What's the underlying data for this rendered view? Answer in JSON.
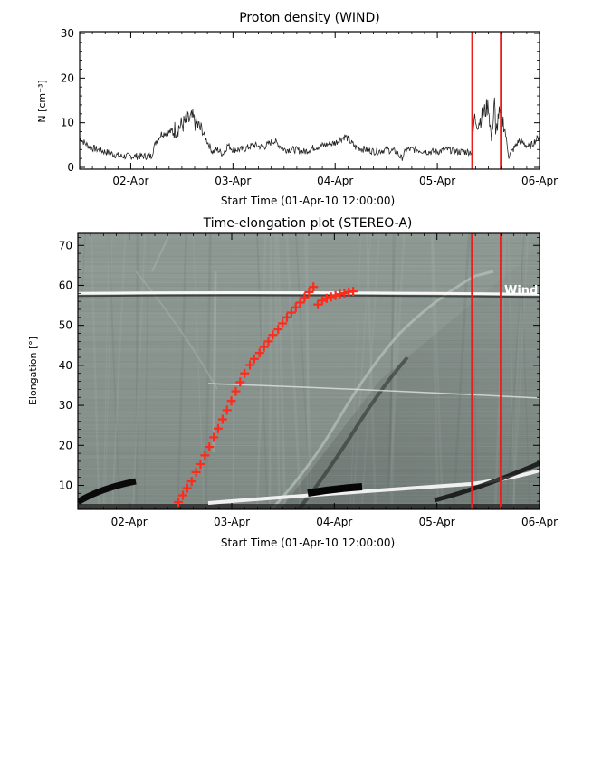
{
  "chart_data": [
    {
      "type": "line",
      "title": "Proton density (WIND)",
      "xlabel": "Start Time (01-Apr-10 12:00:00)",
      "ylabel": "N [cm⁻³]",
      "xlim_days": [
        0.0,
        4.5
      ],
      "ylim": [
        0,
        30
      ],
      "yticks": [
        "0",
        "10",
        "20",
        "30"
      ],
      "xticks": [
        "02-Apr",
        "03-Apr",
        "04-Apr",
        "05-Apr",
        "06-Apr"
      ],
      "series": [
        {
          "x": [
            0.0,
            0.1,
            0.25,
            0.4,
            0.55,
            0.7,
            0.75,
            0.8,
            0.9,
            1.0,
            1.1,
            1.2,
            1.3,
            1.35,
            1.4,
            1.45,
            1.5,
            1.6,
            1.7,
            1.8,
            1.9,
            2.0,
            2.1,
            2.2,
            2.3,
            2.4,
            2.5,
            2.6,
            2.7,
            2.8,
            2.9,
            3.0,
            3.1,
            3.15,
            3.2,
            3.3,
            3.4,
            3.5,
            3.6,
            3.7,
            3.8,
            3.84,
            3.86,
            3.9,
            3.95,
            4.0,
            4.03,
            4.06,
            4.07,
            4.1,
            4.15,
            4.2,
            4.3,
            4.4,
            4.5
          ],
          "y": [
            6.5,
            4.5,
            3.5,
            2.5,
            2.5,
            2.5,
            6.0,
            7.5,
            8.0,
            9.5,
            11.0,
            8.0,
            3.5,
            4.0,
            3.0,
            5.0,
            4.0,
            4.0,
            5.0,
            4.5,
            6.0,
            4.0,
            4.0,
            3.5,
            4.5,
            5.0,
            5.5,
            7.0,
            4.5,
            4.0,
            3.5,
            4.0,
            3.5,
            2.0,
            4.0,
            4.0,
            3.5,
            3.5,
            4.0,
            3.5,
            3.5,
            3.5,
            11.0,
            10.0,
            12.0,
            14.0,
            6.0,
            16.0,
            7.0,
            12.0,
            10.0,
            2.5,
            6.0,
            4.5,
            7.0
          ]
        }
      ],
      "markers_x_days": [
        3.84,
        4.12
      ]
    },
    {
      "type": "heatmap",
      "title": "Time-elongation plot (STEREO-A)",
      "xlabel": "Start Time (01-Apr-10 12:00:00)",
      "ylabel": "Elongation [°]",
      "xlim_days": [
        0.0,
        4.5
      ],
      "ylim": [
        4,
        73
      ],
      "yticks": [
        "10",
        "20",
        "30",
        "40",
        "50",
        "60",
        "70"
      ],
      "xticks": [
        "02-Apr",
        "03-Apr",
        "04-Apr",
        "05-Apr",
        "06-Apr"
      ],
      "annotation": "Wind",
      "annotation_elongation": 58,
      "markers_x_days": [
        3.84,
        4.12
      ],
      "track": {
        "x": [
          2.04,
          2.09,
          2.14,
          2.19,
          2.24,
          2.29,
          2.34,
          2.39,
          2.44,
          2.49,
          2.54,
          2.59,
          2.64,
          2.69,
          2.74,
          2.79,
          2.85,
          2.9,
          2.96,
          3.01,
          3.06,
          3.11,
          3.17,
          3.22,
          3.27,
          3.32,
          3.37,
          3.42,
          3.47,
          3.52,
          3.57,
          3.62,
          3.67,
          3.72,
          3.77,
          3.82,
          3.87,
          3.92,
          3.97,
          4.02
        ],
        "y": [
          5.8,
          7.5,
          9.3,
          11.0,
          13.3,
          15.3,
          17.5,
          19.6,
          22.0,
          24.2,
          26.5,
          28.8,
          31.1,
          33.5,
          35.8,
          38.0,
          40.1,
          41.6,
          43.1,
          44.6,
          46.0,
          47.6,
          49.0,
          50.5,
          52.0,
          53.2,
          54.5,
          55.7,
          57.0,
          58.3,
          59.6,
          60.3,
          61.7,
          62.5,
          63.0,
          63.5,
          64.0,
          64.4,
          64.8,
          65.0
        ]
      }
    }
  ]
}
